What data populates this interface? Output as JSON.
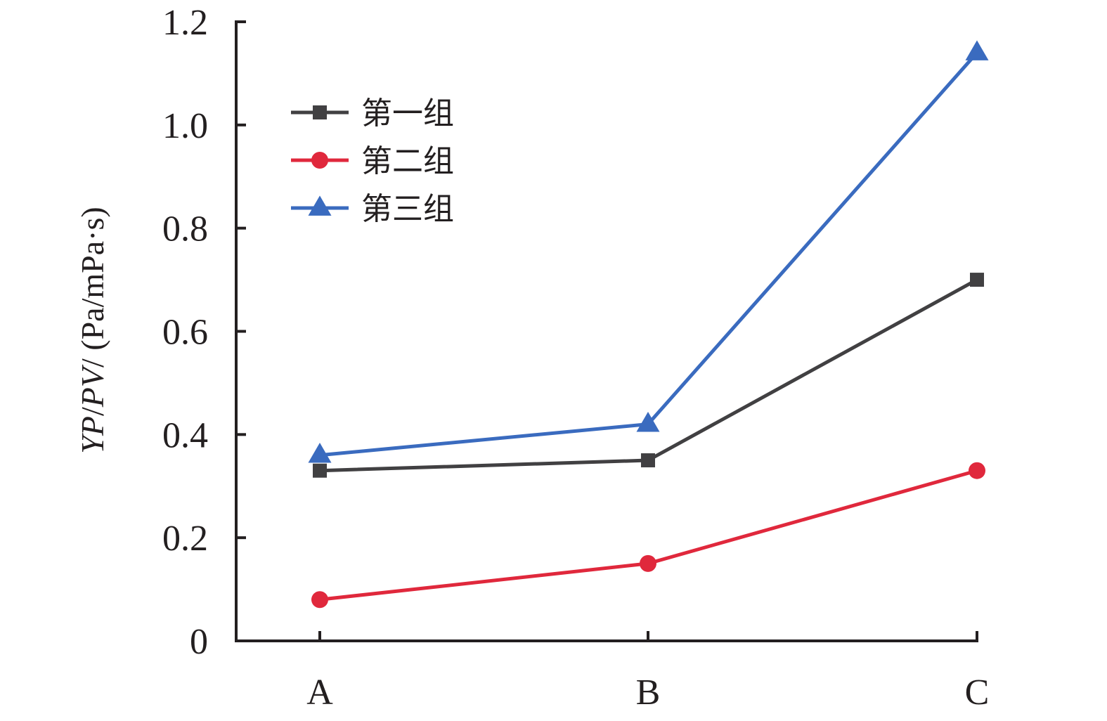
{
  "chart_data": {
    "type": "line",
    "categories": [
      "A",
      "B",
      "C"
    ],
    "series": [
      {
        "name": "第一组",
        "values": [
          0.33,
          0.35,
          0.7
        ],
        "color": "#414042",
        "marker": "square"
      },
      {
        "name": "第二组",
        "values": [
          0.08,
          0.15,
          0.33
        ],
        "color": "#e0283c",
        "marker": "circle"
      },
      {
        "name": "第三组",
        "values": [
          0.36,
          0.42,
          1.14
        ],
        "color": "#3a6bbf",
        "marker": "triangle"
      }
    ],
    "title": "",
    "xlabel": "",
    "ylabel": {
      "italic_1": "YP",
      "sep_1": "/",
      "italic_2": "PV",
      "rest": "/ (Pa/mPa·s)"
    },
    "ylim": [
      0,
      1.2
    ],
    "yticks": [
      0,
      0.2,
      0.4,
      0.6,
      0.8,
      1.0,
      1.2
    ],
    "ytick_labels": [
      "0",
      "0.2",
      "0.4",
      "0.6",
      "0.8",
      "1.0",
      "1.2"
    ],
    "grid": false,
    "legend_position": "top-left"
  }
}
